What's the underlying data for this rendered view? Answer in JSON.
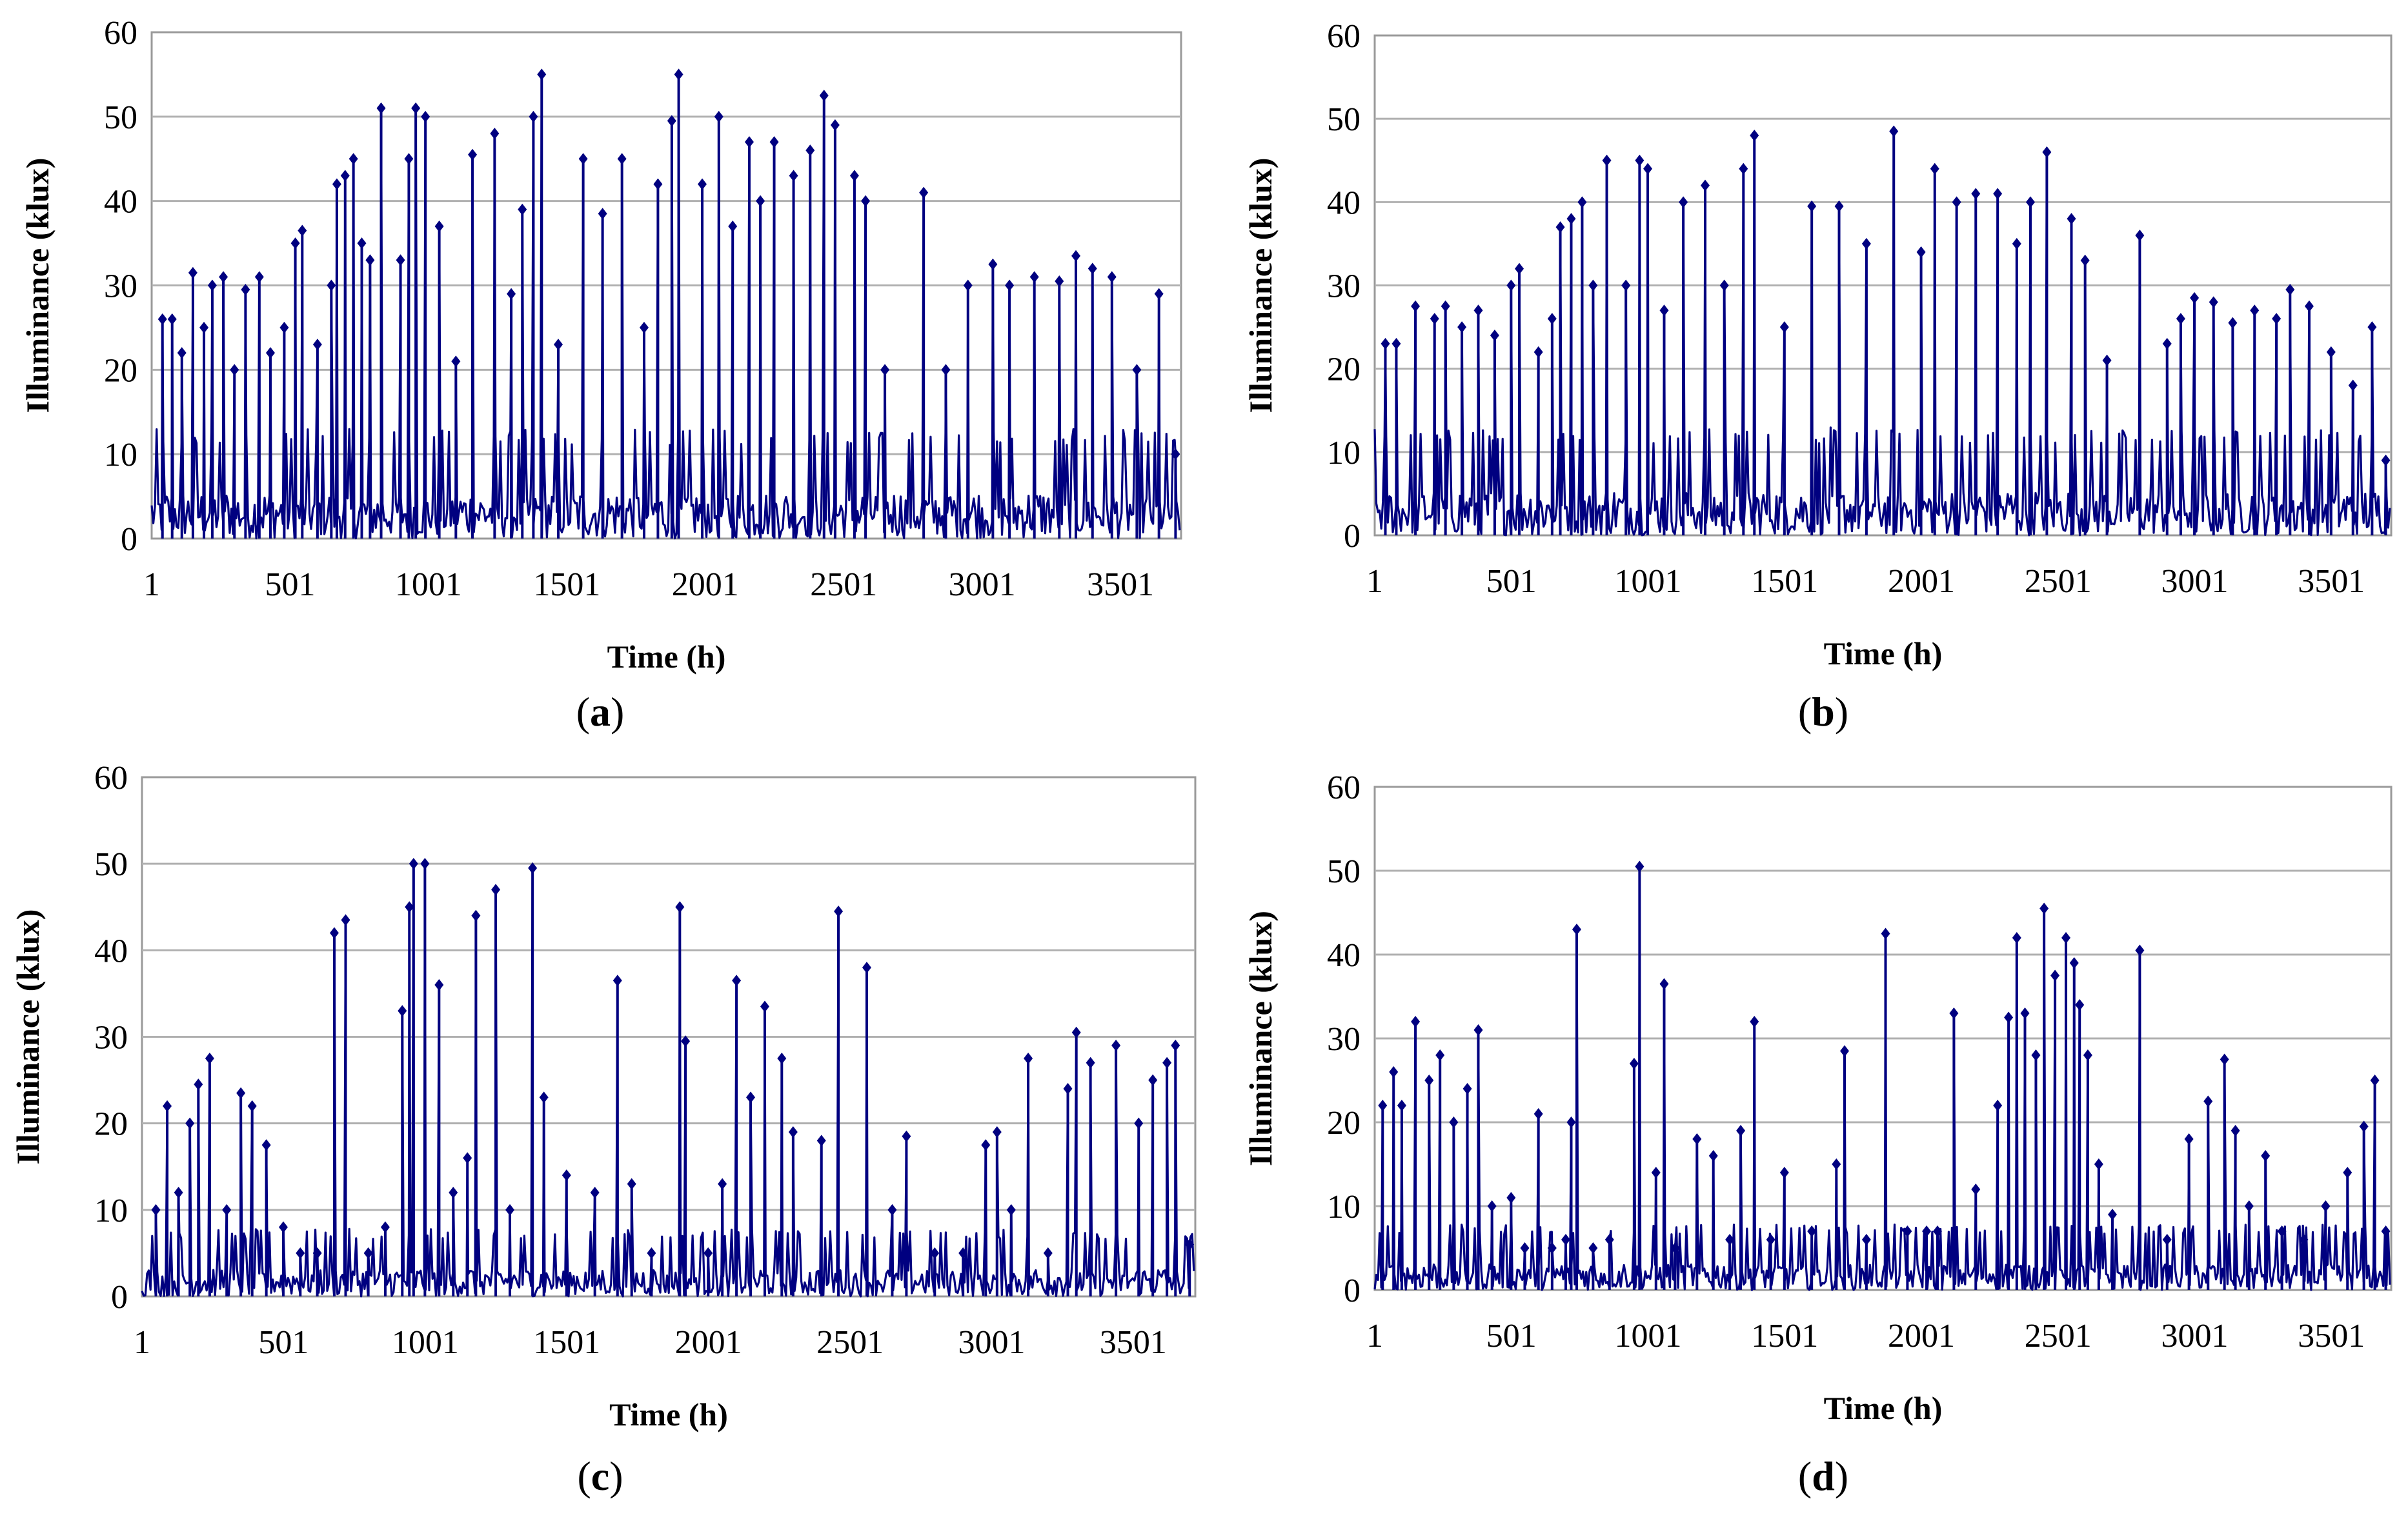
{
  "chart_data": [
    {
      "type": "line",
      "panel": "a",
      "title": "",
      "xlabel": "Time (h)",
      "ylabel": "Illuminance (klux)",
      "ylim": [
        0,
        60
      ],
      "yticks": [
        0,
        10,
        20,
        30,
        40,
        50,
        60
      ],
      "xlim": [
        1,
        3720
      ],
      "xticks": [
        1,
        501,
        1001,
        1501,
        2001,
        2501,
        3001,
        3501
      ],
      "grid": true,
      "line_color": "#000080",
      "baseline": 5,
      "peaks": [
        {
          "x": 40,
          "y": 26
        },
        {
          "x": 75,
          "y": 26
        },
        {
          "x": 110,
          "y": 22
        },
        {
          "x": 150,
          "y": 31.5
        },
        {
          "x": 190,
          "y": 25
        },
        {
          "x": 220,
          "y": 30
        },
        {
          "x": 260,
          "y": 31
        },
        {
          "x": 300,
          "y": 20
        },
        {
          "x": 340,
          "y": 29.5
        },
        {
          "x": 390,
          "y": 31
        },
        {
          "x": 430,
          "y": 22
        },
        {
          "x": 480,
          "y": 25
        },
        {
          "x": 520,
          "y": 35
        },
        {
          "x": 545,
          "y": 36.5
        },
        {
          "x": 600,
          "y": 23
        },
        {
          "x": 650,
          "y": 30
        },
        {
          "x": 670,
          "y": 42
        },
        {
          "x": 700,
          "y": 43
        },
        {
          "x": 730,
          "y": 45
        },
        {
          "x": 760,
          "y": 35
        },
        {
          "x": 790,
          "y": 33
        },
        {
          "x": 830,
          "y": 51
        },
        {
          "x": 900,
          "y": 33
        },
        {
          "x": 930,
          "y": 45
        },
        {
          "x": 955,
          "y": 51
        },
        {
          "x": 990,
          "y": 50
        },
        {
          "x": 1040,
          "y": 37
        },
        {
          "x": 1100,
          "y": 21
        },
        {
          "x": 1160,
          "y": 45.5
        },
        {
          "x": 1240,
          "y": 48
        },
        {
          "x": 1300,
          "y": 29
        },
        {
          "x": 1340,
          "y": 39
        },
        {
          "x": 1380,
          "y": 50
        },
        {
          "x": 1410,
          "y": 55
        },
        {
          "x": 1470,
          "y": 23
        },
        {
          "x": 1560,
          "y": 45
        },
        {
          "x": 1630,
          "y": 38.5
        },
        {
          "x": 1700,
          "y": 45
        },
        {
          "x": 1780,
          "y": 25
        },
        {
          "x": 1830,
          "y": 42
        },
        {
          "x": 1880,
          "y": 49.5
        },
        {
          "x": 1905,
          "y": 55
        },
        {
          "x": 1990,
          "y": 42
        },
        {
          "x": 2050,
          "y": 50
        },
        {
          "x": 2100,
          "y": 37
        },
        {
          "x": 2160,
          "y": 47
        },
        {
          "x": 2200,
          "y": 40
        },
        {
          "x": 2250,
          "y": 47
        },
        {
          "x": 2320,
          "y": 43
        },
        {
          "x": 2380,
          "y": 46
        },
        {
          "x": 2430,
          "y": 52.5
        },
        {
          "x": 2470,
          "y": 49
        },
        {
          "x": 2540,
          "y": 43
        },
        {
          "x": 2580,
          "y": 40
        },
        {
          "x": 2650,
          "y": 20
        },
        {
          "x": 2790,
          "y": 41
        },
        {
          "x": 2870,
          "y": 20
        },
        {
          "x": 2950,
          "y": 30
        },
        {
          "x": 3040,
          "y": 32.5
        },
        {
          "x": 3100,
          "y": 30
        },
        {
          "x": 3190,
          "y": 31
        },
        {
          "x": 3280,
          "y": 30.5
        },
        {
          "x": 3340,
          "y": 33.5
        },
        {
          "x": 3400,
          "y": 32
        },
        {
          "x": 3470,
          "y": 31
        },
        {
          "x": 3560,
          "y": 20
        },
        {
          "x": 3640,
          "y": 29
        },
        {
          "x": 3700,
          "y": 10
        }
      ],
      "caption": "a"
    },
    {
      "type": "line",
      "panel": "b",
      "title": "",
      "xlabel": "Time (h)",
      "ylabel": "Illuminance (klux)",
      "ylim": [
        0,
        60
      ],
      "yticks": [
        0,
        10,
        20,
        30,
        40,
        50,
        60
      ],
      "xlim": [
        1,
        3720
      ],
      "xticks": [
        1,
        501,
        1001,
        1501,
        2001,
        2501,
        3001,
        3501
      ],
      "grid": true,
      "line_color": "#000080",
      "baseline": 5,
      "peaks": [
        {
          "x": 40,
          "y": 23
        },
        {
          "x": 80,
          "y": 23
        },
        {
          "x": 150,
          "y": 27.5
        },
        {
          "x": 220,
          "y": 26
        },
        {
          "x": 260,
          "y": 27.5
        },
        {
          "x": 320,
          "y": 25
        },
        {
          "x": 380,
          "y": 27
        },
        {
          "x": 440,
          "y": 24
        },
        {
          "x": 500,
          "y": 30
        },
        {
          "x": 530,
          "y": 32
        },
        {
          "x": 600,
          "y": 22
        },
        {
          "x": 650,
          "y": 26
        },
        {
          "x": 680,
          "y": 37
        },
        {
          "x": 720,
          "y": 38
        },
        {
          "x": 760,
          "y": 40
        },
        {
          "x": 800,
          "y": 30
        },
        {
          "x": 850,
          "y": 45
        },
        {
          "x": 920,
          "y": 30
        },
        {
          "x": 970,
          "y": 45
        },
        {
          "x": 1000,
          "y": 44
        },
        {
          "x": 1060,
          "y": 27
        },
        {
          "x": 1130,
          "y": 40
        },
        {
          "x": 1210,
          "y": 42
        },
        {
          "x": 1280,
          "y": 30
        },
        {
          "x": 1350,
          "y": 44
        },
        {
          "x": 1390,
          "y": 48
        },
        {
          "x": 1500,
          "y": 25
        },
        {
          "x": 1600,
          "y": 39.5
        },
        {
          "x": 1700,
          "y": 39.5
        },
        {
          "x": 1800,
          "y": 35
        },
        {
          "x": 1900,
          "y": 48.5
        },
        {
          "x": 2000,
          "y": 34
        },
        {
          "x": 2050,
          "y": 44
        },
        {
          "x": 2130,
          "y": 40
        },
        {
          "x": 2200,
          "y": 41
        },
        {
          "x": 2280,
          "y": 41
        },
        {
          "x": 2350,
          "y": 35
        },
        {
          "x": 2400,
          "y": 40
        },
        {
          "x": 2460,
          "y": 46
        },
        {
          "x": 2550,
          "y": 38
        },
        {
          "x": 2600,
          "y": 33
        },
        {
          "x": 2680,
          "y": 21
        },
        {
          "x": 2800,
          "y": 36
        },
        {
          "x": 2900,
          "y": 23
        },
        {
          "x": 2950,
          "y": 26
        },
        {
          "x": 3000,
          "y": 28.5
        },
        {
          "x": 3070,
          "y": 28
        },
        {
          "x": 3140,
          "y": 25.5
        },
        {
          "x": 3220,
          "y": 27
        },
        {
          "x": 3300,
          "y": 26
        },
        {
          "x": 3350,
          "y": 29.5
        },
        {
          "x": 3420,
          "y": 27.5
        },
        {
          "x": 3500,
          "y": 22
        },
        {
          "x": 3580,
          "y": 18
        },
        {
          "x": 3650,
          "y": 25
        },
        {
          "x": 3700,
          "y": 9
        }
      ],
      "caption": "b"
    },
    {
      "type": "line",
      "panel": "c",
      "title": "",
      "xlabel": "Time (h)",
      "ylabel": "Illuminance (klux)",
      "ylim": [
        0,
        60
      ],
      "yticks": [
        0,
        10,
        20,
        30,
        40,
        50,
        60
      ],
      "xlim": [
        1,
        3720
      ],
      "xticks": [
        1,
        501,
        1001,
        1501,
        2001,
        2501,
        3001,
        3501
      ],
      "grid": true,
      "line_color": "#000080",
      "baseline": 3,
      "peaks": [
        {
          "x": 50,
          "y": 10
        },
        {
          "x": 90,
          "y": 22
        },
        {
          "x": 130,
          "y": 12
        },
        {
          "x": 170,
          "y": 20
        },
        {
          "x": 200,
          "y": 24.5
        },
        {
          "x": 240,
          "y": 27.5
        },
        {
          "x": 300,
          "y": 10
        },
        {
          "x": 350,
          "y": 23.5
        },
        {
          "x": 390,
          "y": 22
        },
        {
          "x": 440,
          "y": 17.5
        },
        {
          "x": 500,
          "y": 8
        },
        {
          "x": 560,
          "y": 5
        },
        {
          "x": 620,
          "y": 5
        },
        {
          "x": 680,
          "y": 42
        },
        {
          "x": 720,
          "y": 43.5
        },
        {
          "x": 800,
          "y": 5
        },
        {
          "x": 860,
          "y": 8
        },
        {
          "x": 920,
          "y": 33
        },
        {
          "x": 945,
          "y": 45
        },
        {
          "x": 960,
          "y": 50
        },
        {
          "x": 1000,
          "y": 50
        },
        {
          "x": 1050,
          "y": 36
        },
        {
          "x": 1100,
          "y": 12
        },
        {
          "x": 1150,
          "y": 16
        },
        {
          "x": 1180,
          "y": 44
        },
        {
          "x": 1250,
          "y": 47
        },
        {
          "x": 1300,
          "y": 10
        },
        {
          "x": 1380,
          "y": 49.5
        },
        {
          "x": 1420,
          "y": 23
        },
        {
          "x": 1500,
          "y": 14
        },
        {
          "x": 1600,
          "y": 12
        },
        {
          "x": 1680,
          "y": 36.5
        },
        {
          "x": 1730,
          "y": 13
        },
        {
          "x": 1800,
          "y": 5
        },
        {
          "x": 1900,
          "y": 45
        },
        {
          "x": 1920,
          "y": 29.5
        },
        {
          "x": 2000,
          "y": 5
        },
        {
          "x": 2050,
          "y": 13
        },
        {
          "x": 2100,
          "y": 36.5
        },
        {
          "x": 2150,
          "y": 23
        },
        {
          "x": 2200,
          "y": 33.5
        },
        {
          "x": 2260,
          "y": 27.5
        },
        {
          "x": 2300,
          "y": 19
        },
        {
          "x": 2400,
          "y": 18
        },
        {
          "x": 2460,
          "y": 44.5
        },
        {
          "x": 2560,
          "y": 38
        },
        {
          "x": 2650,
          "y": 10
        },
        {
          "x": 2700,
          "y": 18.5
        },
        {
          "x": 2800,
          "y": 5
        },
        {
          "x": 2900,
          "y": 5
        },
        {
          "x": 2980,
          "y": 17.5
        },
        {
          "x": 3020,
          "y": 19
        },
        {
          "x": 3070,
          "y": 10
        },
        {
          "x": 3130,
          "y": 27.5
        },
        {
          "x": 3200,
          "y": 5
        },
        {
          "x": 3270,
          "y": 24
        },
        {
          "x": 3300,
          "y": 30.5
        },
        {
          "x": 3350,
          "y": 27
        },
        {
          "x": 3440,
          "y": 29
        },
        {
          "x": 3520,
          "y": 20
        },
        {
          "x": 3570,
          "y": 25
        },
        {
          "x": 3620,
          "y": 27
        },
        {
          "x": 3650,
          "y": 29
        },
        {
          "x": 3700,
          "y": 6
        }
      ],
      "caption": "c"
    },
    {
      "type": "line",
      "panel": "d",
      "title": "",
      "xlabel": "Time (h)",
      "ylabel": "Illuminance (klux)",
      "ylim": [
        0,
        60
      ],
      "yticks": [
        0,
        10,
        20,
        30,
        40,
        50,
        60
      ],
      "xlim": [
        1,
        3720
      ],
      "xticks": [
        1,
        501,
        1001,
        1501,
        2001,
        2501,
        3001,
        3501
      ],
      "grid": true,
      "line_color": "#000080",
      "baseline": 3,
      "peaks": [
        {
          "x": 30,
          "y": 22
        },
        {
          "x": 70,
          "y": 26
        },
        {
          "x": 100,
          "y": 22
        },
        {
          "x": 150,
          "y": 32
        },
        {
          "x": 200,
          "y": 25
        },
        {
          "x": 240,
          "y": 28
        },
        {
          "x": 290,
          "y": 20
        },
        {
          "x": 340,
          "y": 24
        },
        {
          "x": 380,
          "y": 31
        },
        {
          "x": 430,
          "y": 10
        },
        {
          "x": 500,
          "y": 11
        },
        {
          "x": 550,
          "y": 5
        },
        {
          "x": 600,
          "y": 21
        },
        {
          "x": 650,
          "y": 5
        },
        {
          "x": 700,
          "y": 6
        },
        {
          "x": 720,
          "y": 20
        },
        {
          "x": 740,
          "y": 43
        },
        {
          "x": 800,
          "y": 5
        },
        {
          "x": 860,
          "y": 6
        },
        {
          "x": 950,
          "y": 27
        },
        {
          "x": 970,
          "y": 50.5
        },
        {
          "x": 1030,
          "y": 14
        },
        {
          "x": 1060,
          "y": 36.5
        },
        {
          "x": 1100,
          "y": 5
        },
        {
          "x": 1180,
          "y": 18
        },
        {
          "x": 1240,
          "y": 16
        },
        {
          "x": 1300,
          "y": 6
        },
        {
          "x": 1340,
          "y": 19
        },
        {
          "x": 1390,
          "y": 32
        },
        {
          "x": 1450,
          "y": 6
        },
        {
          "x": 1500,
          "y": 14
        },
        {
          "x": 1600,
          "y": 7
        },
        {
          "x": 1690,
          "y": 15
        },
        {
          "x": 1720,
          "y": 28.5
        },
        {
          "x": 1800,
          "y": 6
        },
        {
          "x": 1870,
          "y": 42.5
        },
        {
          "x": 1950,
          "y": 7
        },
        {
          "x": 2020,
          "y": 7
        },
        {
          "x": 2060,
          "y": 7
        },
        {
          "x": 2120,
          "y": 33
        },
        {
          "x": 2200,
          "y": 12
        },
        {
          "x": 2280,
          "y": 22
        },
        {
          "x": 2320,
          "y": 32.5
        },
        {
          "x": 2350,
          "y": 42
        },
        {
          "x": 2380,
          "y": 33
        },
        {
          "x": 2420,
          "y": 28
        },
        {
          "x": 2450,
          "y": 45.5
        },
        {
          "x": 2490,
          "y": 37.5
        },
        {
          "x": 2530,
          "y": 42
        },
        {
          "x": 2560,
          "y": 39
        },
        {
          "x": 2580,
          "y": 34
        },
        {
          "x": 2610,
          "y": 28
        },
        {
          "x": 2650,
          "y": 15
        },
        {
          "x": 2700,
          "y": 9
        },
        {
          "x": 2800,
          "y": 40.5
        },
        {
          "x": 2900,
          "y": 6
        },
        {
          "x": 2980,
          "y": 18
        },
        {
          "x": 3050,
          "y": 22.5
        },
        {
          "x": 3110,
          "y": 27.5
        },
        {
          "x": 3150,
          "y": 19
        },
        {
          "x": 3200,
          "y": 10
        },
        {
          "x": 3260,
          "y": 16
        },
        {
          "x": 3320,
          "y": 7
        },
        {
          "x": 3400,
          "y": 6
        },
        {
          "x": 3480,
          "y": 10
        },
        {
          "x": 3560,
          "y": 14
        },
        {
          "x": 3620,
          "y": 19.5
        },
        {
          "x": 3660,
          "y": 25
        },
        {
          "x": 3700,
          "y": 7
        }
      ],
      "caption": "d"
    }
  ]
}
